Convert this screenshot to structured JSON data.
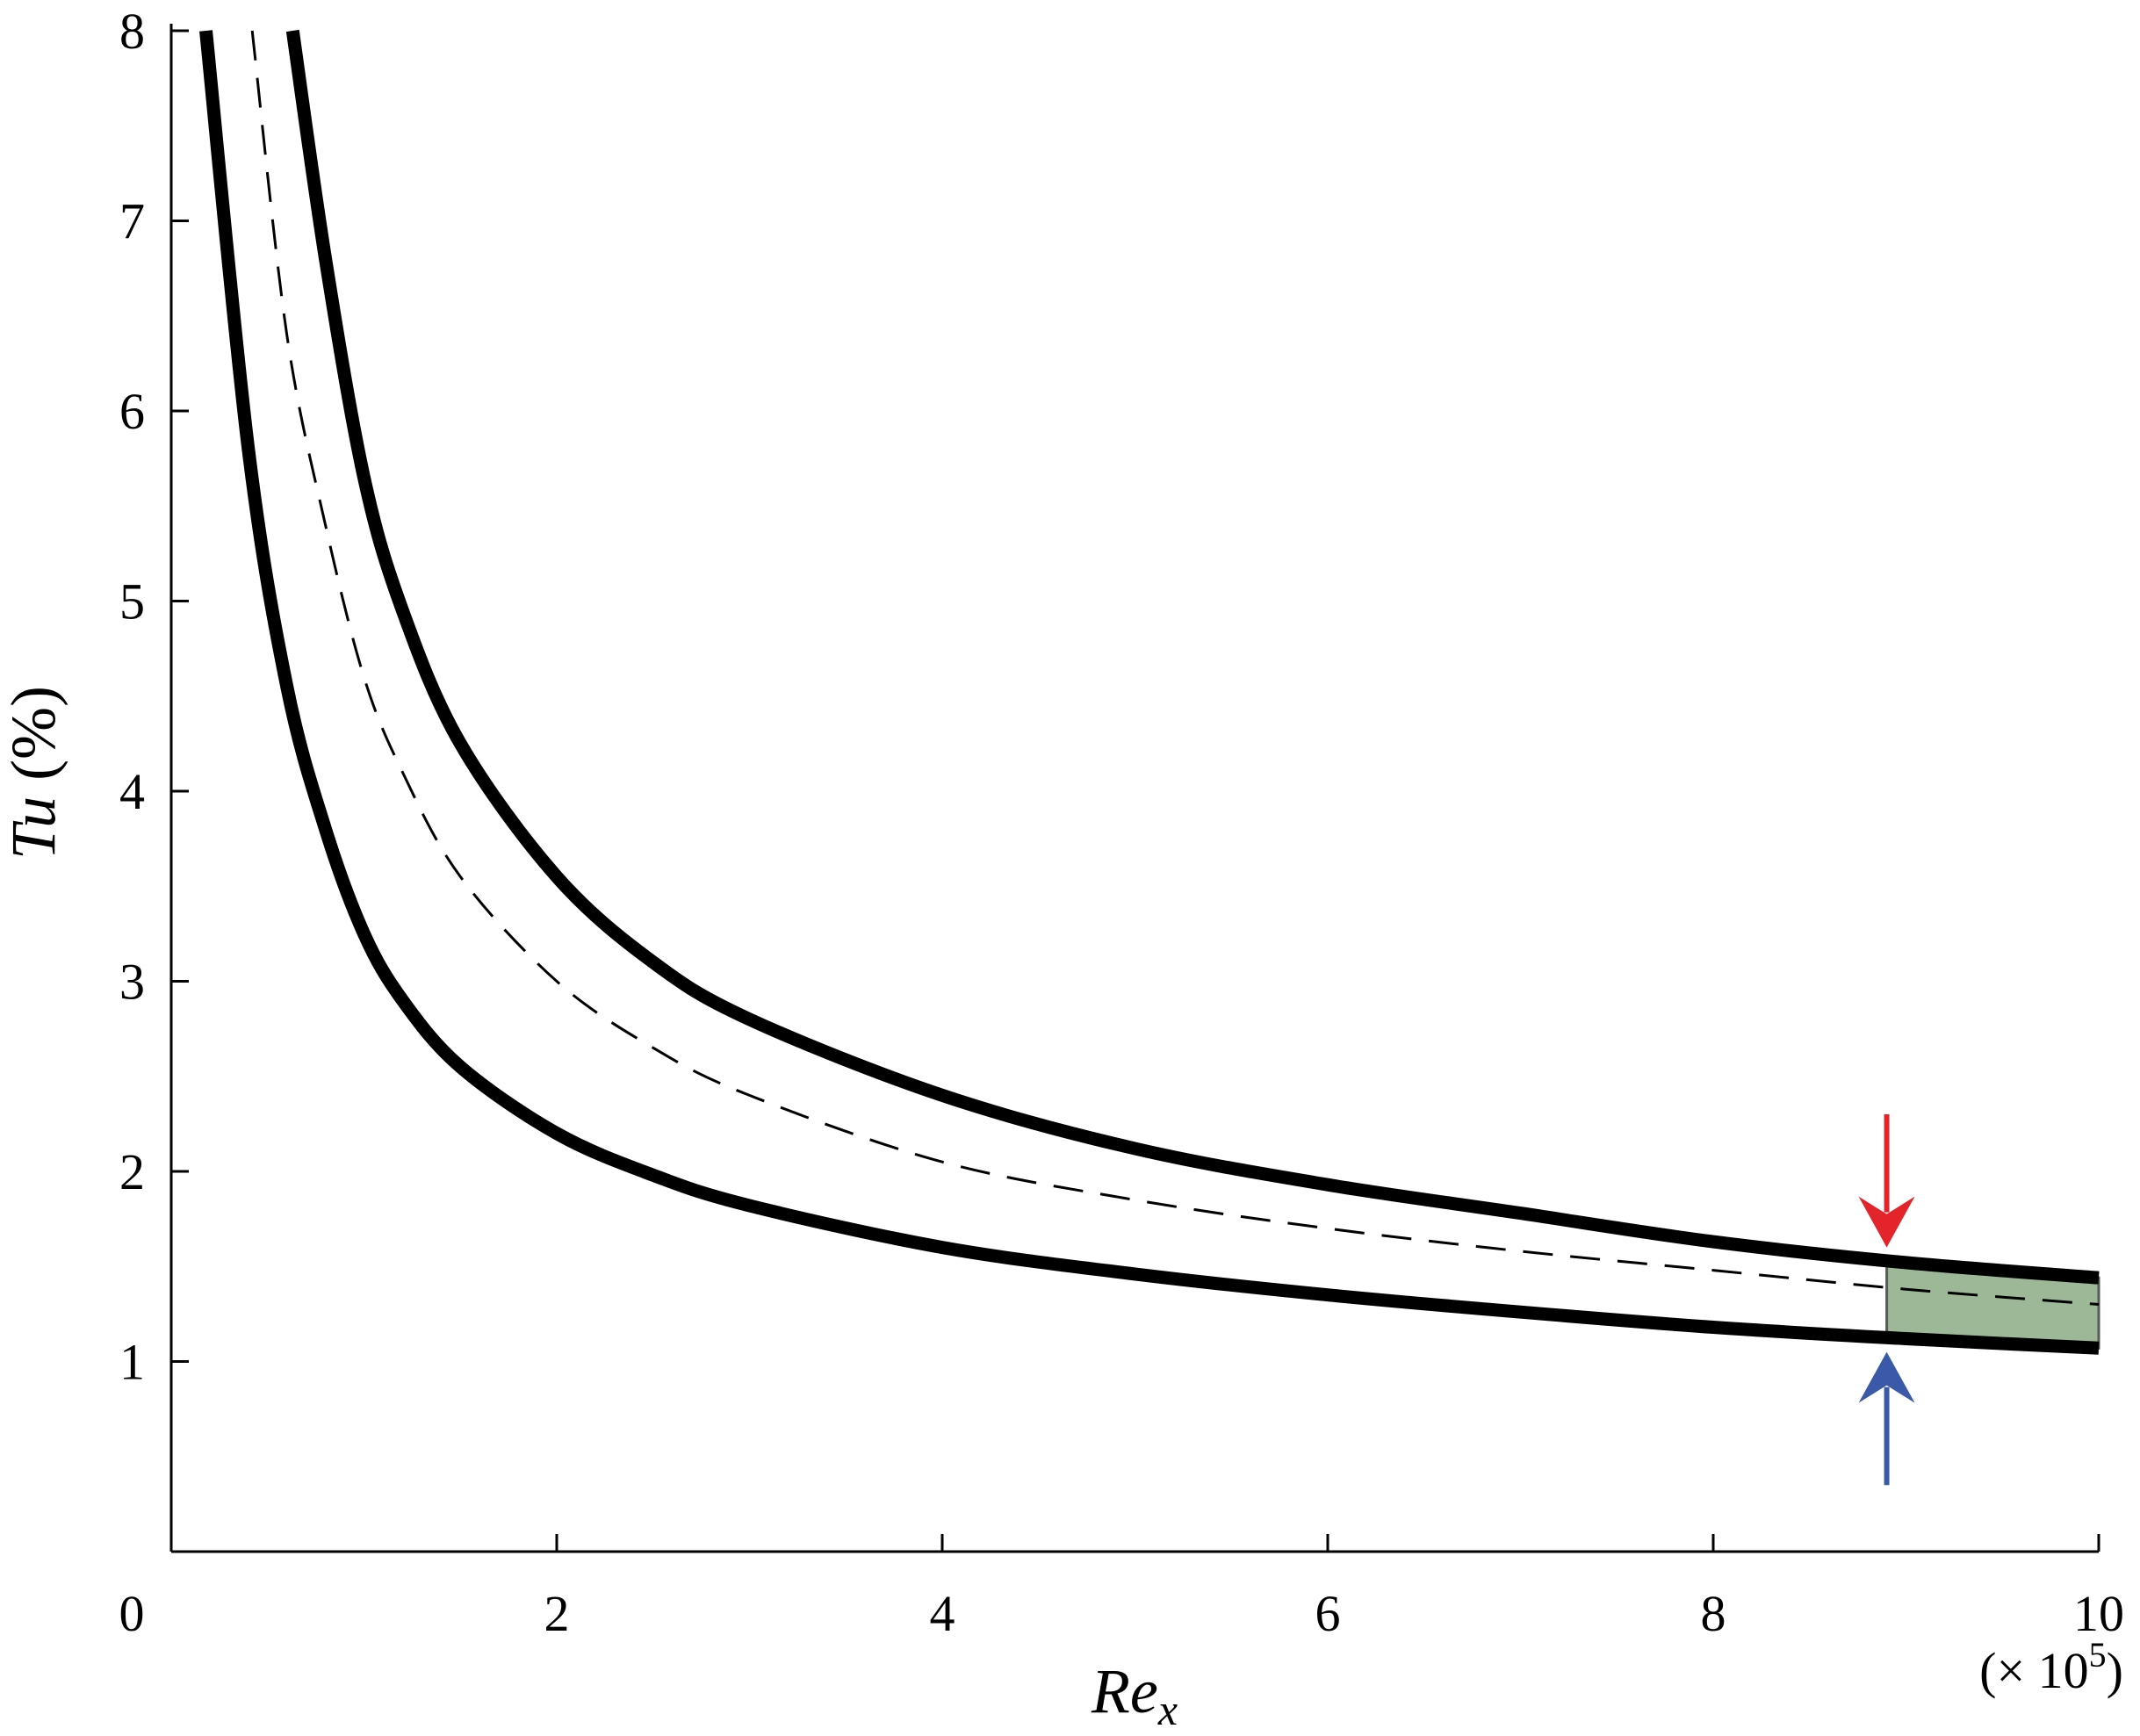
{
  "chart_data": {
    "type": "line",
    "title": "",
    "xlabel": {
      "main": "Re",
      "sub": "x"
    },
    "ylabel": {
      "main": "Tu",
      "unit": "(%)"
    },
    "x_multiplier": {
      "prefix": "(× 10",
      "exponent": "5",
      "suffix": ")"
    },
    "xlim": [
      0,
      10
    ],
    "ylim": [
      0,
      8
    ],
    "x_ticks": [
      0,
      2,
      4,
      6,
      8,
      10
    ],
    "x_tick_labels": [
      "0",
      "2",
      "4",
      "6",
      "8",
      "10"
    ],
    "y_ticks": [
      1,
      2,
      3,
      4,
      5,
      6,
      7,
      8
    ],
    "y_tick_labels": [
      "1",
      "2",
      "3",
      "4",
      "5",
      "6",
      "7",
      "8"
    ],
    "grid": false,
    "series": [
      {
        "style": "solid-thick",
        "color": "#000000",
        "x": [
          0.18,
          0.4,
          0.6,
          0.8,
          1.0,
          1.2,
          1.5,
          2.0,
          2.5,
          3.0,
          4.0,
          5.0,
          6.0,
          7.0,
          8.0,
          9.0,
          10.0
        ],
        "y": [
          8.0,
          5.8,
          4.55,
          3.8,
          3.25,
          2.9,
          2.55,
          2.2,
          1.98,
          1.82,
          1.6,
          1.46,
          1.35,
          1.26,
          1.18,
          1.12,
          1.07
        ]
      },
      {
        "style": "dashed",
        "color": "#000000",
        "x": [
          0.42,
          0.6,
          0.8,
          1.0,
          1.2,
          1.5,
          2.0,
          2.5,
          3.0,
          4.0,
          5.0,
          6.0,
          7.0,
          8.0,
          9.0,
          10.0
        ],
        "y": [
          8.0,
          6.4,
          5.4,
          4.6,
          4.1,
          3.55,
          3.0,
          2.65,
          2.4,
          2.05,
          1.85,
          1.7,
          1.58,
          1.48,
          1.38,
          1.3
        ]
      },
      {
        "style": "solid-thick",
        "color": "#000000",
        "x": [
          0.63,
          0.8,
          1.0,
          1.2,
          1.5,
          2.0,
          2.5,
          3.0,
          4.0,
          5.0,
          6.0,
          7.0,
          8.0,
          9.0,
          10.0
        ],
        "y": [
          8.0,
          6.8,
          5.65,
          4.95,
          4.25,
          3.55,
          3.1,
          2.8,
          2.4,
          2.12,
          1.93,
          1.78,
          1.63,
          1.52,
          1.44
        ]
      }
    ],
    "highlight_band": {
      "x_from": 8.9,
      "x_to": 10.0,
      "color": "#9db896"
    },
    "arrows": [
      {
        "color": "#e3242b",
        "direction": "down",
        "x": 8.9,
        "y_from": 2.3,
        "y_to": 1.6
      },
      {
        "color": "#3a59a8",
        "direction": "up",
        "x": 8.9,
        "y_from": 0.35,
        "y_to": 1.05
      }
    ]
  }
}
